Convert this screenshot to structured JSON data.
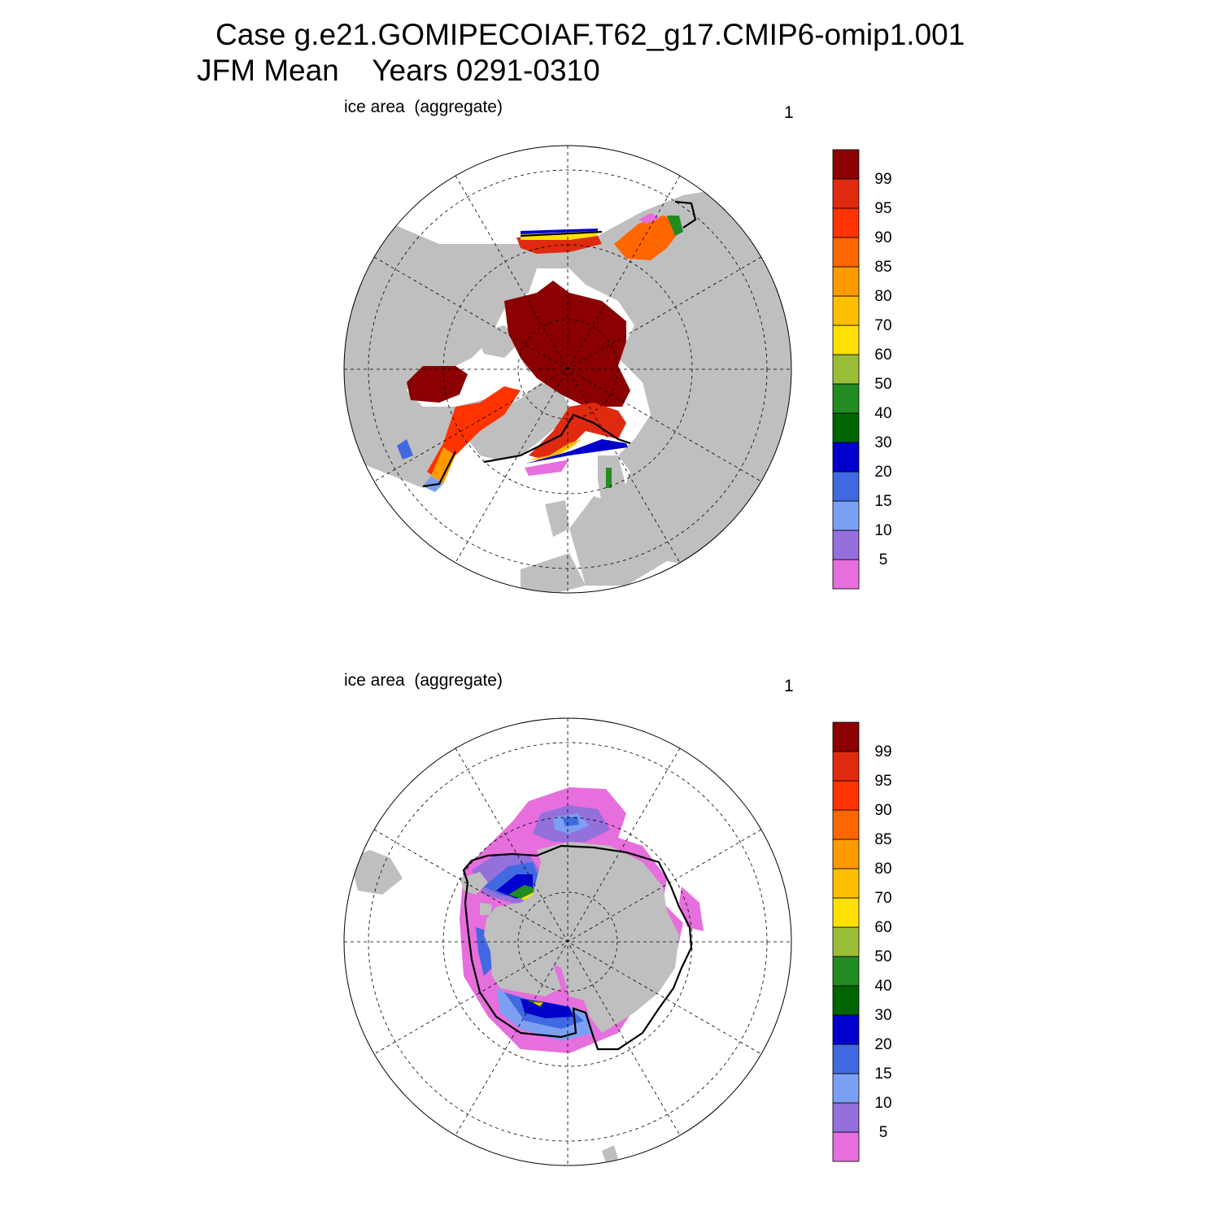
{
  "title": {
    "line1": "Case g.e21.GOMIPECOIAF.T62_g17.CMIP6-omip1.001",
    "line2": "JFM Mean    Years 0291-0310"
  },
  "panels": [
    {
      "id": "nh",
      "left_label": "ice area  (aggregate)",
      "right_label": "1"
    },
    {
      "id": "sh",
      "left_label": "ice area  (aggregate)",
      "right_label": "1"
    }
  ],
  "colorbar": {
    "colors": [
      "#e66fdd",
      "#9370db",
      "#7b9ff2",
      "#4169e1",
      "#0000cd",
      "#006400",
      "#228b22",
      "#9abd3a",
      "#ffe000",
      "#ffbf00",
      "#ff9a00",
      "#ff6600",
      "#ff3300",
      "#e02a10",
      "#8b0000"
    ],
    "labels": [
      "5",
      "10",
      "15",
      "20",
      "30",
      "40",
      "50",
      "60",
      "70",
      "80",
      "85",
      "90",
      "95",
      "99"
    ]
  },
  "colors": {
    "land": "#bfbfbf",
    "ocean": "#ffffff",
    "ice_edge": "#000000"
  }
}
